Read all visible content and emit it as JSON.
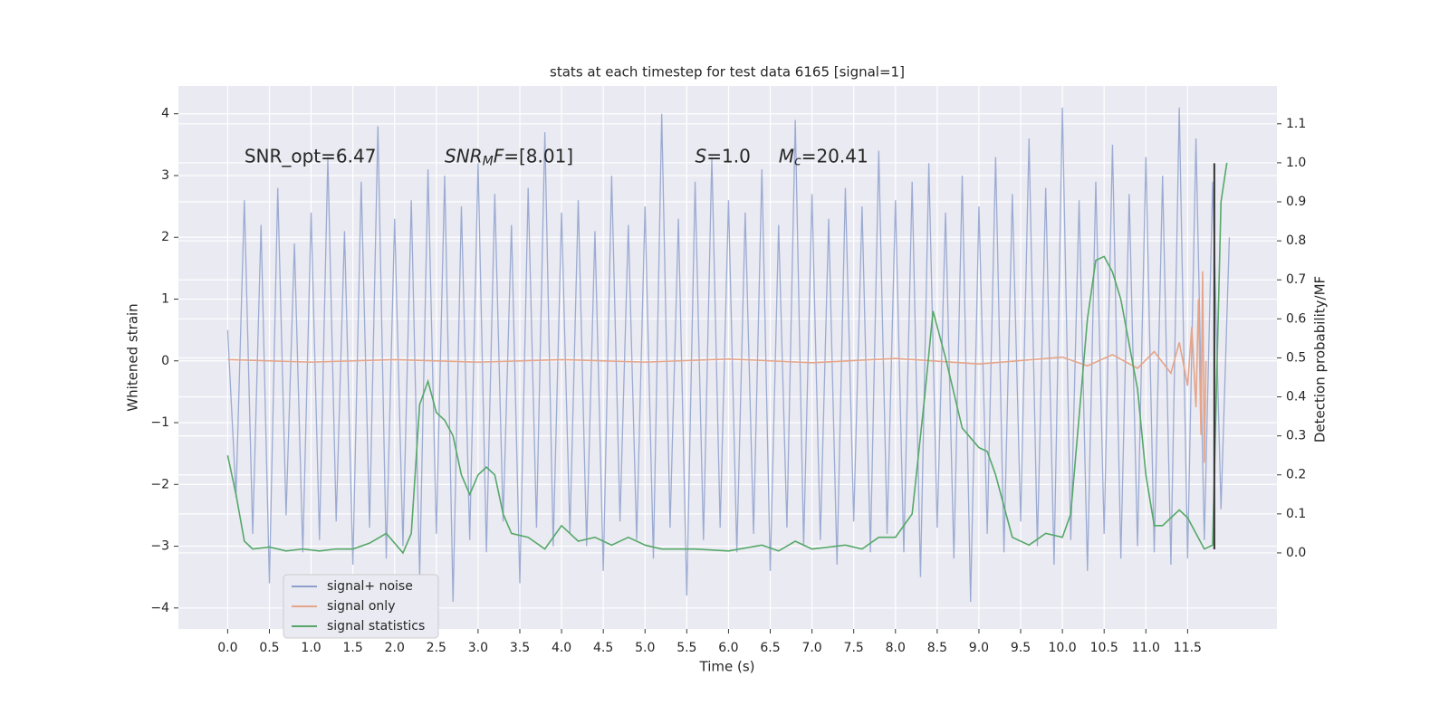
{
  "chart_data": {
    "type": "line",
    "title": "stats at each timestep for test data 6165 [signal=1]",
    "x_label": "Time (s)",
    "y_label": "Whitened strain",
    "y2_label": "Detection probability/MF",
    "xlim": [
      -0.59,
      12.57
    ],
    "ylim": [
      -4.34,
      4.45
    ],
    "y2lim": [
      -0.195,
      1.197
    ],
    "xticks": [
      {
        "value": 0,
        "label": "0.0"
      },
      {
        "value": 0.5,
        "label": "0.5"
      },
      {
        "value": 1,
        "label": "1.0"
      },
      {
        "value": 1.5,
        "label": "1.5"
      },
      {
        "value": 2,
        "label": "2.0"
      },
      {
        "value": 2.5,
        "label": "2.5"
      },
      {
        "value": 3,
        "label": "3.0"
      },
      {
        "value": 3.5,
        "label": "3.5"
      },
      {
        "value": 4,
        "label": "4.0"
      },
      {
        "value": 4.5,
        "label": "4.5"
      },
      {
        "value": 5,
        "label": "5.0"
      },
      {
        "value": 5.5,
        "label": "5.5"
      },
      {
        "value": 6,
        "label": "6.0"
      },
      {
        "value": 6.5,
        "label": "6.5"
      },
      {
        "value": 7,
        "label": "7.0"
      },
      {
        "value": 7.5,
        "label": "7.5"
      },
      {
        "value": 8,
        "label": "8.0"
      },
      {
        "value": 8.5,
        "label": "8.5"
      },
      {
        "value": 9,
        "label": "9.0"
      },
      {
        "value": 9.5,
        "label": "9.5"
      },
      {
        "value": 10,
        "label": "10.0"
      },
      {
        "value": 10.5,
        "label": "10.5"
      },
      {
        "value": 11,
        "label": "11.0"
      },
      {
        "value": 11.5,
        "label": "11.5"
      }
    ],
    "yticks": [
      {
        "value": -4,
        "label": "−4"
      },
      {
        "value": -3,
        "label": "−3"
      },
      {
        "value": -2,
        "label": "−2"
      },
      {
        "value": -1,
        "label": "−1"
      },
      0,
      1,
      2,
      3,
      4
    ],
    "y2ticks": [
      {
        "value": 0,
        "label": "0.0"
      },
      {
        "value": 0.1,
        "label": "0.1"
      },
      {
        "value": 0.2,
        "label": "0.2"
      },
      {
        "value": 0.3,
        "label": "0.3"
      },
      {
        "value": 0.4,
        "label": "0.4"
      },
      {
        "value": 0.5,
        "label": "0.5"
      },
      {
        "value": 0.6,
        "label": "0.6"
      },
      {
        "value": 0.7,
        "label": "0.7"
      },
      {
        "value": 0.8,
        "label": "0.8"
      },
      {
        "value": 0.9,
        "label": "0.9"
      },
      {
        "value": 1,
        "label": "1.0"
      },
      {
        "value": 1.1,
        "label": "1.1"
      }
    ],
    "grid": true,
    "legend": "lower left",
    "series": [
      {
        "name": "signal+ noise",
        "color": "#8da0cb",
        "axis": "y",
        "x": [
          0,
          0.1,
          0.2,
          0.3,
          0.4,
          0.5,
          0.6,
          0.7,
          0.8,
          0.9,
          1,
          1.1,
          1.2,
          1.3,
          1.4,
          1.5,
          1.6,
          1.7,
          1.8,
          1.9,
          2,
          2.1,
          2.2,
          2.3,
          2.4,
          2.5,
          2.6,
          2.7,
          2.8,
          2.9,
          3,
          3.1,
          3.2,
          3.3,
          3.4,
          3.5,
          3.6,
          3.7,
          3.8,
          3.9,
          4,
          4.1,
          4.2,
          4.3,
          4.4,
          4.5,
          4.6,
          4.7,
          4.8,
          4.9,
          5,
          5.1,
          5.2,
          5.3,
          5.4,
          5.5,
          5.6,
          5.7,
          5.8,
          5.9,
          6,
          6.1,
          6.2,
          6.3,
          6.4,
          6.5,
          6.6,
          6.7,
          6.8,
          6.9,
          7,
          7.1,
          7.2,
          7.3,
          7.4,
          7.5,
          7.6,
          7.7,
          7.8,
          7.9,
          8,
          8.1,
          8.2,
          8.3,
          8.4,
          8.5,
          8.6,
          8.7,
          8.8,
          8.9,
          9,
          9.1,
          9.2,
          9.3,
          9.4,
          9.5,
          9.6,
          9.7,
          9.8,
          9.9,
          10,
          10.1,
          10.2,
          10.3,
          10.4,
          10.5,
          10.6,
          10.7,
          10.8,
          10.9,
          11,
          11.1,
          11.2,
          11.3,
          11.4,
          11.5,
          11.6,
          11.7,
          11.8,
          11.9,
          12
        ],
        "values": [
          0.5,
          -2.2,
          2.6,
          -2.8,
          2.2,
          -3.6,
          2.8,
          -2.5,
          1.9,
          -3.1,
          2.4,
          -2.9,
          3.3,
          -2.6,
          2.1,
          -3.3,
          2.9,
          -2.7,
          3.8,
          -3.2,
          2.3,
          -3.0,
          2.6,
          -3.5,
          3.1,
          -2.8,
          3.0,
          -3.9,
          2.5,
          -2.9,
          3.2,
          -3.1,
          2.7,
          -2.6,
          2.2,
          -3.6,
          2.8,
          -2.7,
          3.7,
          -3.0,
          2.4,
          -2.8,
          2.6,
          -3.0,
          2.1,
          -3.4,
          3.0,
          -2.6,
          2.2,
          -2.9,
          2.5,
          -3.2,
          4.0,
          -2.7,
          2.3,
          -3.8,
          2.9,
          -2.9,
          3.3,
          -2.7,
          2.6,
          -3.1,
          2.4,
          -2.8,
          3.1,
          -3.4,
          2.2,
          -2.7,
          3.9,
          -3.0,
          2.7,
          -2.9,
          2.3,
          -3.3,
          2.8,
          -2.6,
          2.5,
          -3.1,
          3.4,
          -2.8,
          2.6,
          -3.1,
          2.9,
          -3.5,
          3.2,
          -2.7,
          2.4,
          -3.2,
          3.0,
          -3.9,
          2.5,
          -2.8,
          3.3,
          -3.1,
          2.7,
          -2.6,
          3.6,
          -3.0,
          2.8,
          -3.3,
          4.1,
          -2.9,
          2.6,
          -3.4,
          2.9,
          -2.8,
          3.5,
          -3.2,
          2.7,
          -3.0,
          3.3,
          -3.1,
          3.0,
          -3.3,
          4.1,
          -3.2,
          3.6,
          -2.9,
          2.9,
          -2.4,
          2.0
        ]
      },
      {
        "name": "signal only",
        "color": "#e5a58a",
        "axis": "y",
        "x": [
          0,
          1,
          2,
          3,
          4,
          5,
          6,
          7,
          8,
          9,
          10,
          10.3,
          10.6,
          10.9,
          11.1,
          11.3,
          11.4,
          11.5,
          11.55,
          11.6,
          11.63,
          11.66,
          11.68,
          11.7,
          11.72
        ],
        "values": [
          0.02,
          -0.02,
          0.02,
          -0.02,
          0.02,
          -0.02,
          0.03,
          -0.03,
          0.04,
          -0.05,
          0.06,
          -0.08,
          0.1,
          -0.12,
          0.15,
          -0.2,
          0.3,
          -0.4,
          0.55,
          -0.75,
          1.0,
          -1.2,
          1.45,
          -1.65,
          0
        ]
      },
      {
        "name": "signal statistics",
        "color": "#55a868",
        "axis": "y2",
        "x": [
          0,
          0.1,
          0.2,
          0.3,
          0.5,
          0.7,
          0.9,
          1.1,
          1.3,
          1.5,
          1.7,
          1.9,
          2.1,
          2.2,
          2.3,
          2.4,
          2.5,
          2.6,
          2.7,
          2.8,
          2.9,
          3,
          3.1,
          3.2,
          3.3,
          3.4,
          3.6,
          3.8,
          4,
          4.2,
          4.4,
          4.6,
          4.8,
          5,
          5.2,
          5.6,
          6,
          6.4,
          6.6,
          6.8,
          7,
          7.4,
          7.6,
          7.8,
          8,
          8.2,
          8.35,
          8.45,
          8.6,
          8.8,
          9,
          9.1,
          9.2,
          9.4,
          9.6,
          9.8,
          10,
          10.1,
          10.3,
          10.4,
          10.5,
          10.6,
          10.7,
          10.9,
          11,
          11.1,
          11.2,
          11.4,
          11.5,
          11.7,
          11.8,
          11.9,
          11.97
        ],
        "values": [
          0.25,
          0.15,
          0.03,
          0.01,
          0.015,
          0.005,
          0.01,
          0.005,
          0.01,
          0.01,
          0.025,
          0.05,
          0,
          0.05,
          0.38,
          0.44,
          0.36,
          0.34,
          0.3,
          0.2,
          0.15,
          0.2,
          0.22,
          0.2,
          0.1,
          0.05,
          0.04,
          0.01,
          0.07,
          0.03,
          0.04,
          0.02,
          0.04,
          0.02,
          0.01,
          0.01,
          0.005,
          0.02,
          0.005,
          0.03,
          0.01,
          0.02,
          0.01,
          0.04,
          0.04,
          0.1,
          0.4,
          0.62,
          0.5,
          0.32,
          0.27,
          0.26,
          0.2,
          0.04,
          0.02,
          0.05,
          0.04,
          0.1,
          0.6,
          0.75,
          0.76,
          0.72,
          0.65,
          0.42,
          0.2,
          0.07,
          0.07,
          0.11,
          0.09,
          0.01,
          0.02,
          0.9,
          1.0
        ]
      }
    ],
    "vline": {
      "x": 11.82,
      "ymin": -3.05,
      "ymax": 3.2,
      "color": "#333333"
    },
    "annotations": [
      {
        "x": 0.2,
        "y": 3.3,
        "parts": [
          {
            "text": "SNR_opt=6.47",
            "italic": false,
            "sub": false
          }
        ]
      },
      {
        "x": 2.6,
        "y": 3.3,
        "parts": [
          {
            "text": "SNR",
            "italic": true,
            "sub": false
          },
          {
            "text": "M",
            "italic": true,
            "sub": true
          },
          {
            "text": "F",
            "italic": true,
            "sub": false
          },
          {
            "text": "=[8.01]",
            "italic": false,
            "sub": false
          }
        ]
      },
      {
        "x": 5.6,
        "y": 3.3,
        "parts": [
          {
            "text": "S",
            "italic": true,
            "sub": false
          },
          {
            "text": "=1.0",
            "italic": false,
            "sub": false
          }
        ]
      },
      {
        "x": 6.6,
        "y": 3.3,
        "parts": [
          {
            "text": "M",
            "italic": true,
            "sub": false
          },
          {
            "text": "c",
            "italic": true,
            "sub": true
          },
          {
            "text": "=20.41",
            "italic": false,
            "sub": false
          }
        ]
      }
    ]
  }
}
